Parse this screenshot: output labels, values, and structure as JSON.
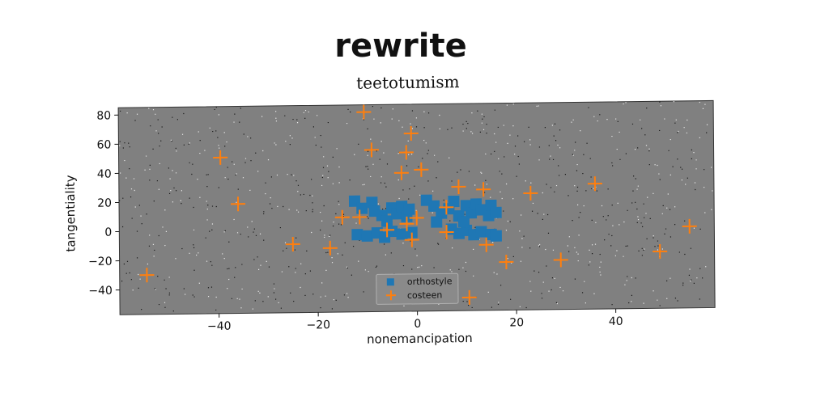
{
  "supertitle": "rewrite",
  "chart_data": {
    "type": "scatter",
    "title": "teetotumism",
    "xlabel": "nonemancipation",
    "ylabel": "tangentiality",
    "xlim": [
      -60,
      60
    ],
    "ylim": [
      -57,
      85
    ],
    "xticks": [
      -40,
      -20,
      0,
      20,
      40
    ],
    "yticks": [
      -40,
      -20,
      0,
      20,
      40,
      60,
      80
    ],
    "grid": false,
    "legend_position": "bottom-center",
    "background_color": "#808080",
    "series": [
      {
        "name": "orthostyle",
        "marker": "square",
        "color": "#1f77b4",
        "points": [
          [
            -12.5,
            19
          ],
          [
            -11,
            14
          ],
          [
            -9,
            18
          ],
          [
            -8.5,
            12
          ],
          [
            -7,
            9
          ],
          [
            -6,
            5
          ],
          [
            -5,
            14
          ],
          [
            -4,
            10
          ],
          [
            -3,
            15
          ],
          [
            -2,
            8
          ],
          [
            -1.5,
            13
          ],
          [
            -12,
            -4
          ],
          [
            -10,
            -5
          ],
          [
            -8,
            -3
          ],
          [
            -6.5,
            -6
          ],
          [
            -5,
            -2
          ],
          [
            -3,
            -4
          ],
          [
            -1,
            -3
          ],
          [
            2,
            19
          ],
          [
            3.5,
            15
          ],
          [
            5,
            10
          ],
          [
            6.5,
            13
          ],
          [
            7.5,
            18
          ],
          [
            8.5,
            8
          ],
          [
            10,
            15
          ],
          [
            11,
            10
          ],
          [
            12,
            16
          ],
          [
            13,
            12
          ],
          [
            14.5,
            8
          ],
          [
            15,
            15
          ],
          [
            16,
            10
          ],
          [
            7,
            -1
          ],
          [
            8.5,
            -4
          ],
          [
            10,
            -2
          ],
          [
            11.5,
            -5
          ],
          [
            13,
            -3
          ],
          [
            15,
            -5
          ],
          [
            16,
            -6
          ],
          [
            4,
            4
          ],
          [
            9.5,
            4
          ]
        ]
      },
      {
        "name": "costeen",
        "marker": "plus",
        "color": "#ff7f0e",
        "points": [
          [
            -54.5,
            -30
          ],
          [
            -39.5,
            50
          ],
          [
            -36,
            18
          ],
          [
            -25,
            -10
          ],
          [
            -17.5,
            -13
          ],
          [
            -15,
            8
          ],
          [
            -11.5,
            8
          ],
          [
            -10.5,
            80
          ],
          [
            -9,
            54
          ],
          [
            -6,
            -1
          ],
          [
            -3,
            38
          ],
          [
            -2,
            3
          ],
          [
            -2,
            52
          ],
          [
            -1,
            65
          ],
          [
            -1,
            -8
          ],
          [
            0,
            7
          ],
          [
            1,
            40
          ],
          [
            6,
            -3
          ],
          [
            6,
            14
          ],
          [
            8.5,
            28
          ],
          [
            10.5,
            -48
          ],
          [
            13.5,
            26
          ],
          [
            14,
            -12
          ],
          [
            18,
            -24
          ],
          [
            23,
            23
          ],
          [
            29,
            -23
          ],
          [
            36,
            29
          ],
          [
            49,
            -18
          ],
          [
            55,
            -1
          ]
        ]
      }
    ]
  }
}
